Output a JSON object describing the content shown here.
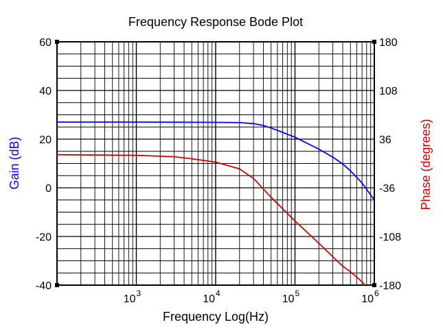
{
  "chart_data": {
    "type": "line",
    "title": "Frequency Response Bode Plot",
    "xlabel": "Frequency Log(Hz)",
    "ylabel_left": "Gain (dB)",
    "ylabel_right": "Phase (degrees)",
    "x_scale": "log",
    "xlim": [
      100,
      1000000
    ],
    "ylim_left": [
      -40,
      60
    ],
    "ylim_right": [
      -180,
      180
    ],
    "grid": true,
    "x_ticks": [
      {
        "value": 1000,
        "base": "10",
        "exp": "3"
      },
      {
        "value": 10000,
        "base": "10",
        "exp": "4"
      },
      {
        "value": 100000,
        "base": "10",
        "exp": "5"
      },
      {
        "value": 1000000,
        "base": "10",
        "exp": "6"
      }
    ],
    "y_left_ticks": [
      {
        "value": 60,
        "label": "60"
      },
      {
        "value": 40,
        "label": "40"
      },
      {
        "value": 20,
        "label": "20"
      },
      {
        "value": 0,
        "label": "0"
      },
      {
        "value": -20,
        "label": "-20"
      },
      {
        "value": -40,
        "label": "-40"
      }
    ],
    "y_right_ticks": [
      {
        "value": 180,
        "label": "180"
      },
      {
        "value": 108,
        "label": "108"
      },
      {
        "value": 36,
        "label": "36"
      },
      {
        "value": -36,
        "label": "-36"
      },
      {
        "value": -108,
        "label": "-108"
      },
      {
        "value": -180,
        "label": "-180"
      }
    ],
    "series": [
      {
        "axis": "left",
        "color": "#0000ff",
        "x": [
          100,
          1000,
          10000,
          20000,
          30000,
          40000,
          50000,
          70000,
          100000,
          200000,
          300000,
          400000,
          500000,
          700000,
          1000000
        ],
        "values": [
          27,
          27,
          26.9,
          26.8,
          26.4,
          25.6,
          24.6,
          22.8,
          20.8,
          15.9,
          12.6,
          9.8,
          7.0,
          2.0,
          -5.0
        ]
      },
      {
        "axis": "right",
        "color": "#cc0000",
        "x": [
          100,
          1000,
          3000,
          5000,
          10000,
          20000,
          30000,
          50000,
          100000,
          200000,
          300000,
          400000,
          500000,
          700000,
          1000000
        ],
        "values": [
          13,
          12,
          10,
          7,
          2,
          -8,
          -22,
          -50,
          -85,
          -118,
          -138,
          -152,
          -160,
          -175,
          -195
        ]
      }
    ]
  }
}
